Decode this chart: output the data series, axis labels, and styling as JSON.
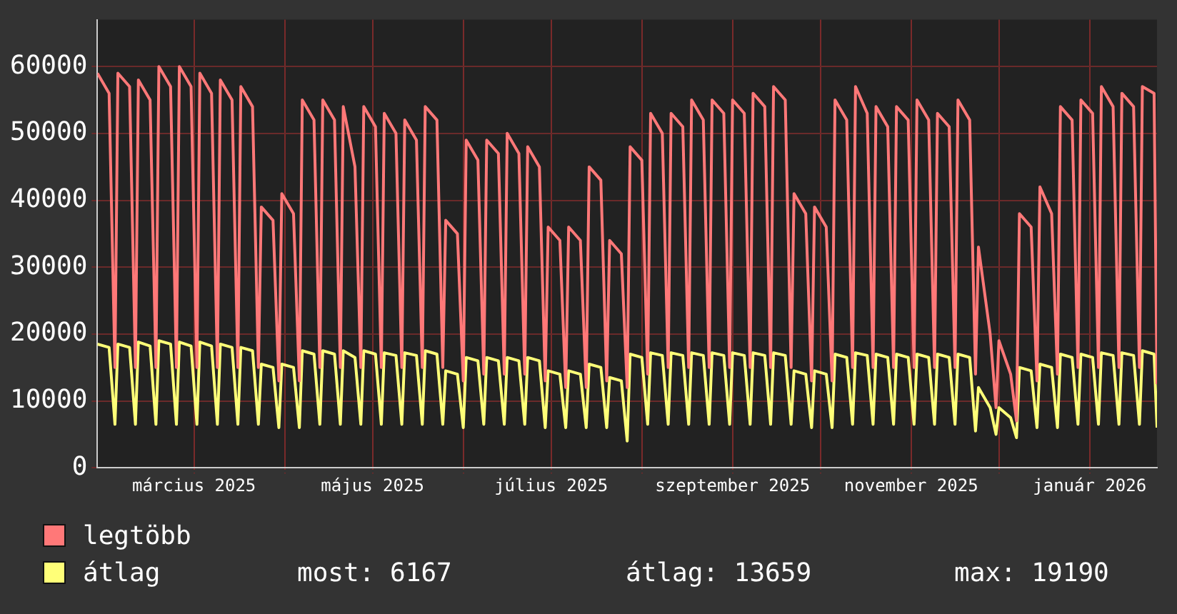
{
  "chart_data": {
    "type": "line",
    "legend": "bottom",
    "grid": true,
    "marker": "none",
    "line_style": "solid",
    "xlim": [
      "2025-01-27",
      "2026-01-24"
    ],
    "xticks": [
      {
        "value": "2025-03-01",
        "label": "március 2025"
      },
      {
        "value": "2025-04-01",
        "label": null
      },
      {
        "value": "2025-05-01",
        "label": "május 2025"
      },
      {
        "value": "2025-06-01",
        "label": null
      },
      {
        "value": "2025-07-01",
        "label": "július 2025"
      },
      {
        "value": "2025-08-01",
        "label": null
      },
      {
        "value": "2025-09-01",
        "label": "szeptember 2025"
      },
      {
        "value": "2025-10-01",
        "label": null
      },
      {
        "value": "2025-11-01",
        "label": "november 2025"
      },
      {
        "value": "2025-12-01",
        "label": null
      },
      {
        "value": "2026-01-01",
        "label": "január 2026"
      }
    ],
    "ylim": [
      0,
      67000
    ],
    "yticks": [
      0,
      10000,
      20000,
      30000,
      40000,
      50000,
      60000
    ],
    "annotations": [
      "most: 6167",
      "átlag: 13659",
      "max: 19190"
    ],
    "x": [
      "2025-01-27",
      "2025-01-31",
      "2025-02-02",
      "2025-02-03",
      "2025-02-07",
      "2025-02-09",
      "2025-02-10",
      "2025-02-14",
      "2025-02-16",
      "2025-02-17",
      "2025-02-21",
      "2025-02-23",
      "2025-02-24",
      "2025-02-28",
      "2025-03-02",
      "2025-03-03",
      "2025-03-07",
      "2025-03-09",
      "2025-03-10",
      "2025-03-14",
      "2025-03-16",
      "2025-03-17",
      "2025-03-21",
      "2025-03-23",
      "2025-03-24",
      "2025-03-28",
      "2025-03-30",
      "2025-03-31",
      "2025-04-04",
      "2025-04-06",
      "2025-04-07",
      "2025-04-11",
      "2025-04-13",
      "2025-04-14",
      "2025-04-18",
      "2025-04-20",
      "2025-04-21",
      "2025-04-25",
      "2025-04-27",
      "2025-04-28",
      "2025-05-02",
      "2025-05-04",
      "2025-05-05",
      "2025-05-09",
      "2025-05-11",
      "2025-05-12",
      "2025-05-16",
      "2025-05-18",
      "2025-05-19",
      "2025-05-23",
      "2025-05-25",
      "2025-05-26",
      "2025-05-30",
      "2025-06-01",
      "2025-06-02",
      "2025-06-06",
      "2025-06-08",
      "2025-06-09",
      "2025-06-13",
      "2025-06-15",
      "2025-06-16",
      "2025-06-20",
      "2025-06-22",
      "2025-06-23",
      "2025-06-27",
      "2025-06-29",
      "2025-06-30",
      "2025-07-04",
      "2025-07-06",
      "2025-07-07",
      "2025-07-11",
      "2025-07-13",
      "2025-07-14",
      "2025-07-18",
      "2025-07-20",
      "2025-07-21",
      "2025-07-25",
      "2025-07-27",
      "2025-07-28",
      "2025-08-01",
      "2025-08-03",
      "2025-08-04",
      "2025-08-08",
      "2025-08-10",
      "2025-08-11",
      "2025-08-15",
      "2025-08-17",
      "2025-08-18",
      "2025-08-22",
      "2025-08-24",
      "2025-08-25",
      "2025-08-29",
      "2025-08-31",
      "2025-09-01",
      "2025-09-05",
      "2025-09-07",
      "2025-09-08",
      "2025-09-12",
      "2025-09-14",
      "2025-09-15",
      "2025-09-19",
      "2025-09-21",
      "2025-09-22",
      "2025-09-26",
      "2025-09-28",
      "2025-09-29",
      "2025-10-03",
      "2025-10-05",
      "2025-10-06",
      "2025-10-10",
      "2025-10-12",
      "2025-10-13",
      "2025-10-17",
      "2025-10-19",
      "2025-10-20",
      "2025-10-24",
      "2025-10-26",
      "2025-10-27",
      "2025-10-31",
      "2025-11-02",
      "2025-11-03",
      "2025-11-07",
      "2025-11-09",
      "2025-11-10",
      "2025-11-14",
      "2025-11-16",
      "2025-11-17",
      "2025-11-21",
      "2025-11-23",
      "2025-11-24",
      "2025-11-28",
      "2025-11-30",
      "2025-12-01",
      "2025-12-05",
      "2025-12-07",
      "2025-12-08",
      "2025-12-12",
      "2025-12-14",
      "2025-12-15",
      "2025-12-19",
      "2025-12-21",
      "2025-12-22",
      "2025-12-26",
      "2025-12-28",
      "2025-12-29",
      "2026-01-02",
      "2026-01-04",
      "2026-01-05",
      "2026-01-09",
      "2026-01-11",
      "2026-01-12",
      "2026-01-16",
      "2026-01-18",
      "2026-01-19",
      "2026-01-23",
      "2026-01-24"
    ],
    "series": [
      {
        "name": "legtöbb",
        "color": "#ff7878",
        "values": [
          59000,
          56000,
          15000,
          59000,
          57000,
          15000,
          58000,
          55000,
          15000,
          60000,
          57000,
          15000,
          60000,
          57000,
          15000,
          59000,
          56000,
          15000,
          58000,
          55000,
          15000,
          57000,
          54000,
          15000,
          39000,
          37000,
          13000,
          41000,
          38000,
          13000,
          55000,
          52000,
          15000,
          55000,
          52000,
          15000,
          54000,
          45000,
          15000,
          54000,
          51000,
          15000,
          53000,
          50000,
          15000,
          52000,
          49000,
          15000,
          54000,
          52000,
          15000,
          37000,
          35000,
          13000,
          49000,
          46000,
          14000,
          49000,
          47000,
          14000,
          50000,
          47000,
          14000,
          48000,
          45000,
          13000,
          36000,
          34000,
          12000,
          36000,
          34000,
          12000,
          45000,
          43000,
          13000,
          34000,
          32000,
          12000,
          48000,
          46000,
          14000,
          53000,
          50000,
          15000,
          53000,
          51000,
          15000,
          55000,
          52000,
          15000,
          55000,
          53000,
          15000,
          55000,
          53000,
          15000,
          56000,
          54000,
          15000,
          57000,
          55000,
          15000,
          41000,
          38000,
          13000,
          39000,
          36000,
          13000,
          55000,
          52000,
          15000,
          57000,
          53000,
          15000,
          54000,
          51000,
          15000,
          54000,
          52000,
          15000,
          55000,
          52000,
          15000,
          53000,
          51000,
          15000,
          55000,
          52000,
          14000,
          33000,
          20000,
          9000,
          19000,
          14000,
          7000,
          38000,
          36000,
          13000,
          42000,
          38000,
          14000,
          54000,
          52000,
          15000,
          55000,
          53000,
          15000,
          57000,
          54000,
          15000,
          56000,
          54000,
          15000,
          57000,
          56000,
          12500
        ]
      },
      {
        "name": "átlag",
        "color": "#ffff78",
        "values": [
          18500,
          18000,
          6500,
          18500,
          18000,
          6500,
          18800,
          18200,
          6500,
          19000,
          18500,
          6500,
          18800,
          18200,
          6500,
          18800,
          18200,
          6500,
          18500,
          18000,
          6500,
          18000,
          17500,
          6500,
          15500,
          15000,
          6000,
          15500,
          15000,
          6000,
          17500,
          17000,
          6500,
          17500,
          17000,
          6500,
          17500,
          16500,
          6500,
          17500,
          17000,
          6500,
          17200,
          16800,
          6500,
          17200,
          16800,
          6500,
          17500,
          17000,
          6500,
          14500,
          14000,
          6000,
          16500,
          16000,
          6500,
          16500,
          16000,
          6500,
          16500,
          16000,
          6500,
          16500,
          16000,
          6000,
          14500,
          14000,
          6000,
          14500,
          14000,
          6000,
          15500,
          15000,
          6000,
          13500,
          13000,
          4000,
          17000,
          16500,
          6500,
          17200,
          16800,
          6500,
          17200,
          16800,
          6500,
          17200,
          16800,
          6500,
          17200,
          16800,
          6500,
          17200,
          16800,
          6500,
          17200,
          16800,
          6500,
          17200,
          16800,
          6500,
          14500,
          14000,
          6000,
          14500,
          14000,
          6000,
          17000,
          16500,
          6500,
          17200,
          16800,
          6500,
          17000,
          16500,
          6500,
          17000,
          16500,
          6500,
          17000,
          16500,
          6500,
          17000,
          16500,
          6500,
          17000,
          16500,
          5500,
          12000,
          9000,
          5000,
          9000,
          7500,
          4500,
          15000,
          14500,
          6000,
          15500,
          15000,
          6000,
          17000,
          16500,
          6500,
          17000,
          16500,
          6500,
          17200,
          16800,
          6500,
          17200,
          16800,
          6500,
          17500,
          17000,
          6000
        ]
      }
    ]
  }
}
